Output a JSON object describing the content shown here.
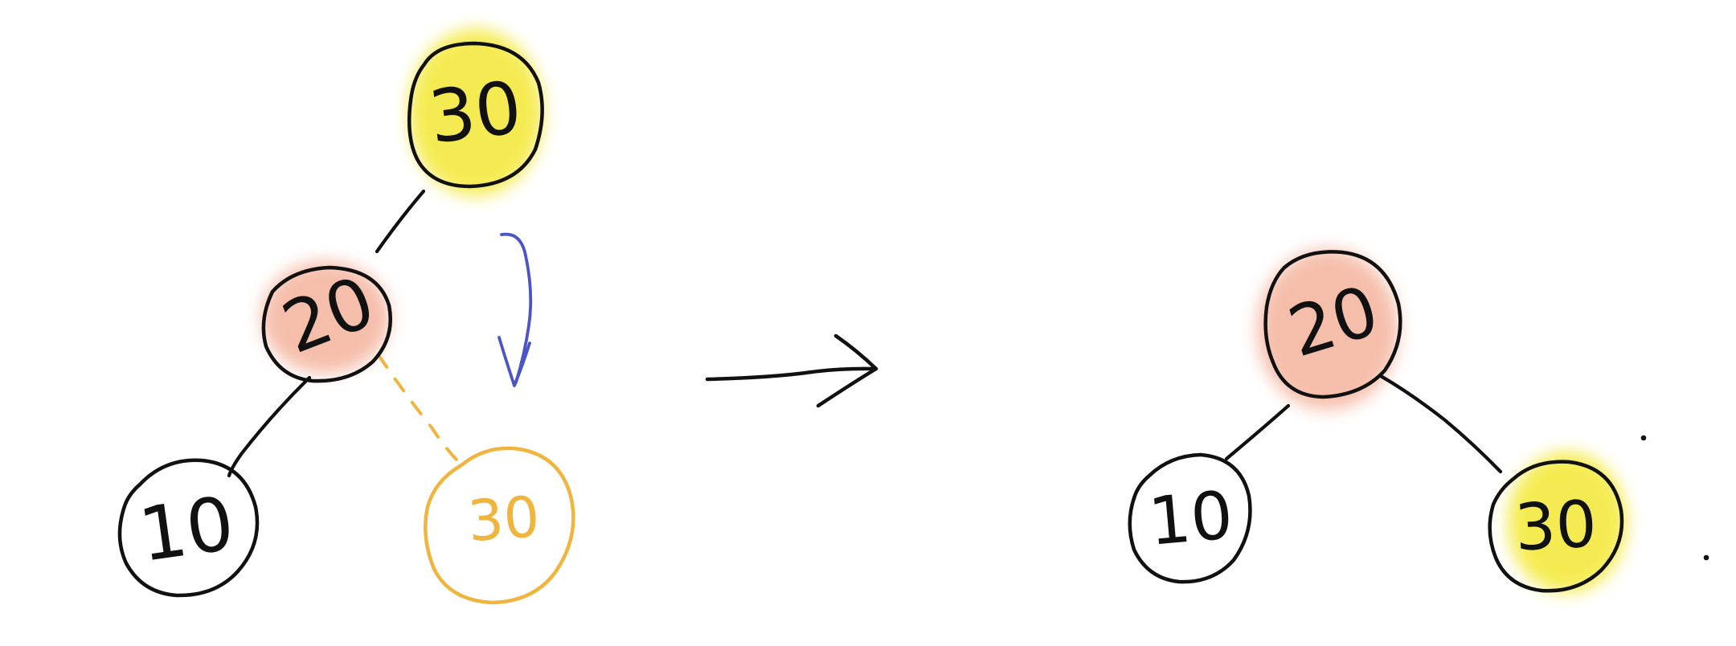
{
  "diagram": {
    "before": {
      "nodes": {
        "root": "30",
        "middle": "20",
        "left": "10",
        "moved": "30"
      }
    },
    "after": {
      "nodes": {
        "root": "20",
        "left": "10",
        "right": "30"
      }
    },
    "colors": {
      "yellow": "#f4ea45",
      "pink": "#f4b39d",
      "blue": "#4b55c8",
      "orange": "#f0b53f",
      "black": "#111111"
    }
  }
}
